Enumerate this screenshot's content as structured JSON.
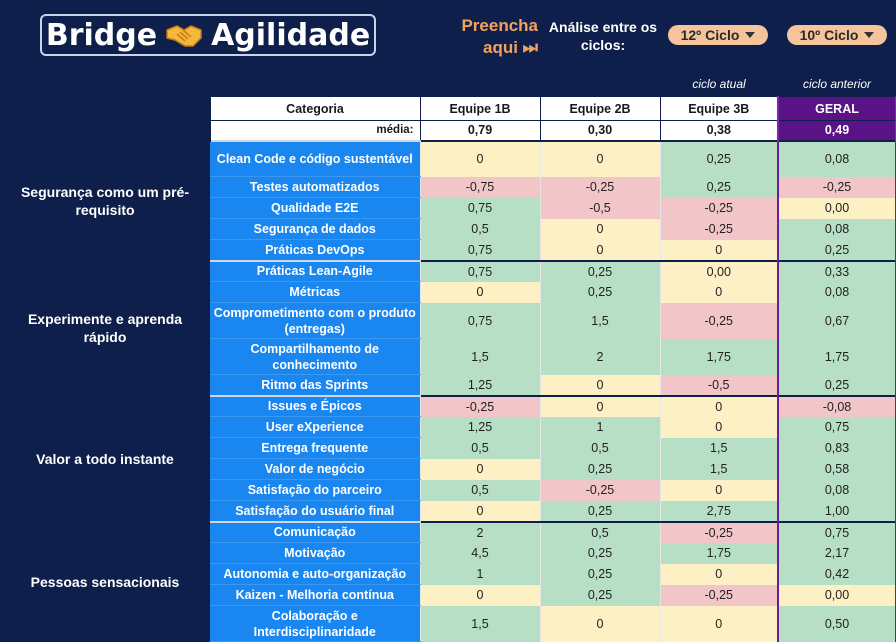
{
  "header": {
    "logo_left": "Bridge",
    "logo_right": "Agilidade",
    "logo_icon": "handshake-icon",
    "fill_line1": "Preencha",
    "fill_line2": "aqui ⏭",
    "analysis_label": "Análise entre os ciclos:",
    "cycle_current": "12º Ciclo",
    "cycle_previous": "10º Ciclo",
    "note_current": "ciclo atual",
    "note_previous": "ciclo anterior"
  },
  "table": {
    "col_category": "Categoria",
    "avg_label": "média:",
    "teams": [
      "Equipe 1B",
      "Equipe 2B",
      "Equipe 3B",
      "GERAL"
    ],
    "averages": [
      "0,79",
      "0,30",
      "0,38",
      "0,49"
    ],
    "sections": [
      {
        "title": "Segurança como um pré-requisito",
        "rows": [
          {
            "cat": "Clean Code e código sustentável",
            "vals": [
              "0",
              "0",
              "0,25",
              "0,08"
            ],
            "c": [
              "y",
              "y",
              "g",
              "g"
            ]
          },
          {
            "cat": "Testes automatizados",
            "vals": [
              "-0,75",
              "-0,25",
              "0,25",
              "-0,25"
            ],
            "c": [
              "r",
              "r",
              "g",
              "r"
            ]
          },
          {
            "cat": "Qualidade E2E",
            "vals": [
              "0,75",
              "-0,5",
              "-0,25",
              "0,00"
            ],
            "c": [
              "g",
              "r",
              "r",
              "y"
            ]
          },
          {
            "cat": "Segurança de dados",
            "vals": [
              "0,5",
              "0",
              "-0,25",
              "0,08"
            ],
            "c": [
              "g",
              "y",
              "r",
              "g"
            ]
          },
          {
            "cat": "Práticas DevOps",
            "vals": [
              "0,75",
              "0",
              "0",
              "0,25"
            ],
            "c": [
              "g",
              "y",
              "y",
              "g"
            ]
          }
        ]
      },
      {
        "title": "Experimente e aprenda rápido",
        "rows": [
          {
            "cat": "Práticas Lean-Agile",
            "vals": [
              "0,75",
              "0,25",
              "0,00",
              "0,33"
            ],
            "c": [
              "g",
              "g",
              "y",
              "g"
            ]
          },
          {
            "cat": "Métricas",
            "vals": [
              "0",
              "0,25",
              "0",
              "0,08"
            ],
            "c": [
              "y",
              "g",
              "y",
              "g"
            ]
          },
          {
            "cat": "Comprometimento com o produto (entregas)",
            "vals": [
              "0,75",
              "1,5",
              "-0,25",
              "0,67"
            ],
            "c": [
              "g",
              "g",
              "r",
              "g"
            ]
          },
          {
            "cat": "Compartilhamento de conhecimento",
            "vals": [
              "1,5",
              "2",
              "1,75",
              "1,75"
            ],
            "c": [
              "g",
              "g",
              "g",
              "g"
            ]
          },
          {
            "cat": "Ritmo das Sprints",
            "vals": [
              "1,25",
              "0",
              "-0,5",
              "0,25"
            ],
            "c": [
              "g",
              "y",
              "r",
              "g"
            ]
          }
        ]
      },
      {
        "title": "Valor a todo instante",
        "rows": [
          {
            "cat": "Issues e Épicos",
            "vals": [
              "-0,25",
              "0",
              "0",
              "-0,08"
            ],
            "c": [
              "r",
              "y",
              "y",
              "r"
            ]
          },
          {
            "cat": "User eXperience",
            "vals": [
              "1,25",
              "1",
              "0",
              "0,75"
            ],
            "c": [
              "g",
              "g",
              "y",
              "g"
            ]
          },
          {
            "cat": "Entrega frequente",
            "vals": [
              "0,5",
              "0,5",
              "1,5",
              "0,83"
            ],
            "c": [
              "g",
              "g",
              "g",
              "g"
            ]
          },
          {
            "cat": "Valor de negócio",
            "vals": [
              "0",
              "0,25",
              "1,5",
              "0,58"
            ],
            "c": [
              "y",
              "g",
              "g",
              "g"
            ]
          },
          {
            "cat": "Satisfação do parceiro",
            "vals": [
              "0,5",
              "-0,25",
              "0",
              "0,08"
            ],
            "c": [
              "g",
              "r",
              "y",
              "g"
            ]
          },
          {
            "cat": "Satisfação do usuário final",
            "vals": [
              "0",
              "0,25",
              "2,75",
              "1,00"
            ],
            "c": [
              "y",
              "g",
              "g",
              "g"
            ]
          }
        ]
      },
      {
        "title": "Pessoas sensacionais",
        "rows": [
          {
            "cat": "Comunicação",
            "vals": [
              "2",
              "0,5",
              "-0,25",
              "0,75"
            ],
            "c": [
              "g",
              "g",
              "r",
              "g"
            ]
          },
          {
            "cat": "Motivação",
            "vals": [
              "4,5",
              "0,25",
              "1,75",
              "2,17"
            ],
            "c": [
              "g",
              "g",
              "g",
              "g"
            ]
          },
          {
            "cat": "Autonomia e auto-organização",
            "vals": [
              "1",
              "0,25",
              "0",
              "0,42"
            ],
            "c": [
              "g",
              "g",
              "y",
              "g"
            ]
          },
          {
            "cat": "Kaizen - Melhoria contínua",
            "vals": [
              "0",
              "0,25",
              "-0,25",
              "0,00"
            ],
            "c": [
              "y",
              "g",
              "r",
              "y"
            ]
          },
          {
            "cat": "Colaboração e Interdisciplinaridade",
            "vals": [
              "1,5",
              "0",
              "0",
              "0,50"
            ],
            "c": [
              "g",
              "y",
              "y",
              "g"
            ]
          }
        ]
      }
    ]
  }
}
